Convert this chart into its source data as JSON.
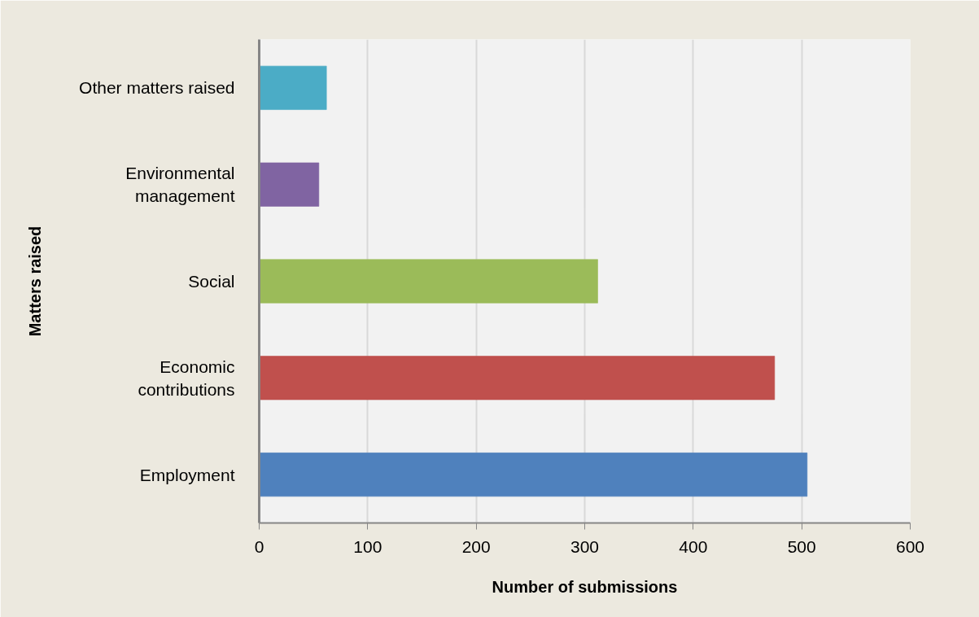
{
  "chart_data": {
    "type": "bar",
    "orientation": "horizontal",
    "xlabel": "Number of submissions",
    "ylabel": "Matters raised",
    "categories": [
      "Other matters raised",
      "Environmental management",
      "Social",
      "Economic contributions",
      "Employment"
    ],
    "values": [
      62,
      55,
      312,
      475,
      505
    ],
    "colors": [
      "#4bacc6",
      "#8064a2",
      "#9bbb59",
      "#c0504d",
      "#4f81bd"
    ],
    "xlim": [
      0,
      600
    ],
    "xticks": [
      0,
      100,
      200,
      300,
      400,
      500,
      600
    ],
    "grid": "x"
  }
}
